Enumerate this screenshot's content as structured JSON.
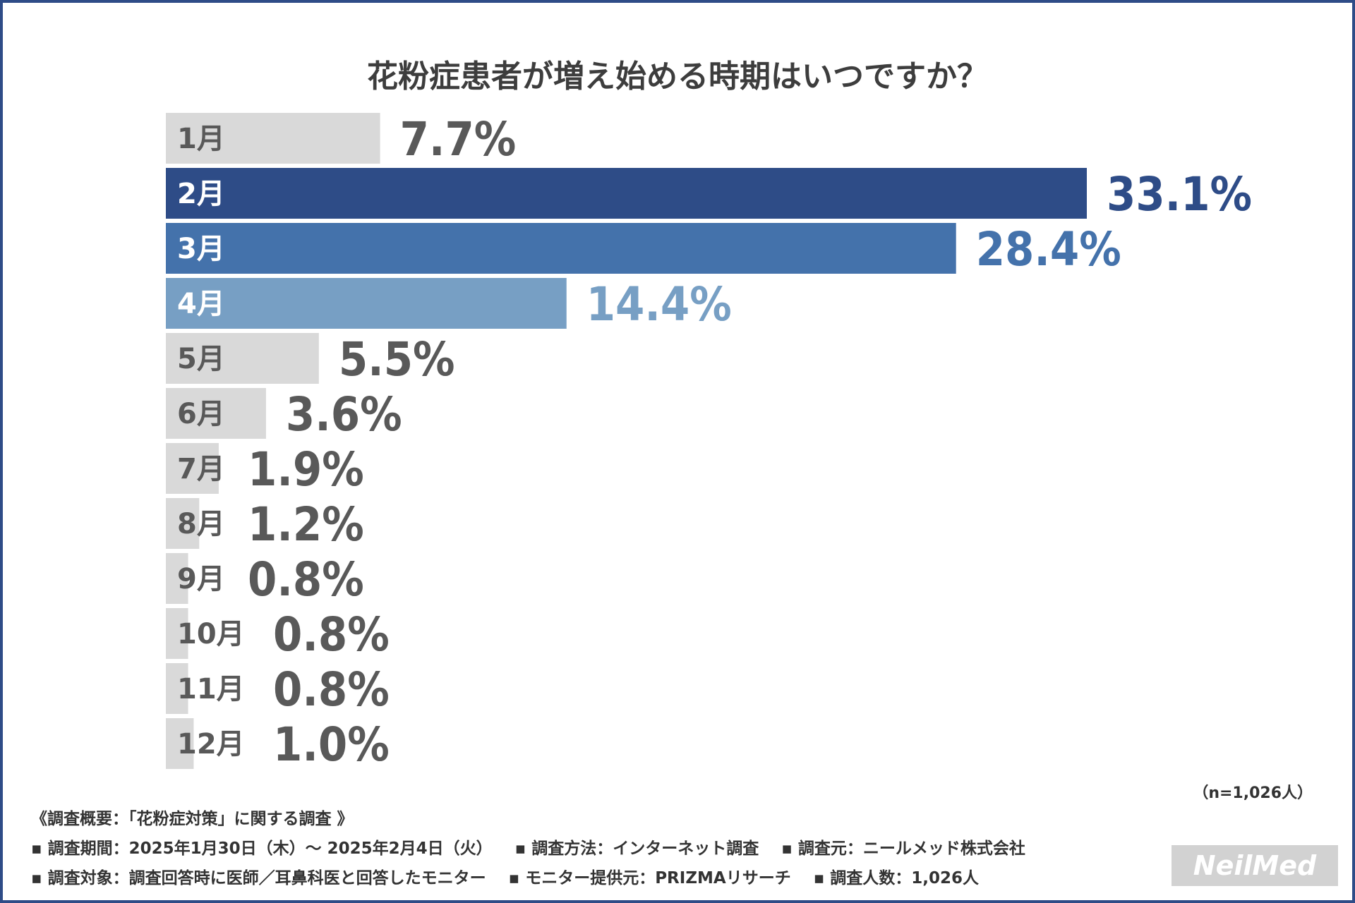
{
  "title": "花粉症患者が増え始める時期はいつですか？",
  "colors": {
    "gray": "#d9d9d9",
    "feb": "#2e4c87",
    "mar": "#4472ab",
    "apr": "#779fc4",
    "label_gray": "#595959",
    "value_gray": "#595959"
  },
  "chart_data": {
    "type": "bar",
    "orientation": "horizontal",
    "categories": [
      "1月",
      "2月",
      "3月",
      "4月",
      "5月",
      "6月",
      "7月",
      "8月",
      "9月",
      "10月",
      "11月",
      "12月"
    ],
    "values": [
      7.7,
      33.1,
      28.4,
      14.4,
      5.5,
      3.6,
      1.9,
      1.2,
      0.8,
      0.8,
      0.8,
      1.0
    ],
    "value_labels": [
      "7.7%",
      "33.1%",
      "28.4%",
      "14.4%",
      "5.5%",
      "3.6%",
      "1.9%",
      "1.2%",
      "0.8%",
      "0.8%",
      "0.8%",
      "1.0%"
    ],
    "highlight": {
      "2月": "feb",
      "3月": "mar",
      "4月": "apr"
    },
    "xlim": [
      0,
      33.1
    ],
    "grid": false
  },
  "sample_size": "（n=1,026人）",
  "notes": {
    "survey": "《調査概要：「花粉症対策」に関する調査 》",
    "period": "▪ 調査期間：2025年1月30日（木）～ 2025年2月4日（火）",
    "method": "▪ 調査方法：インターネット調査",
    "organizer": "▪ 調査元：ニールメッド株式会社",
    "target": "▪ 調査対象：調査回答時に医師／耳鼻科医と回答したモニター",
    "provider": "▪ モニター提供元：PRIZMAリサーチ",
    "count": "▪ 調査人数：1,026人"
  },
  "logo": "NeilMed"
}
